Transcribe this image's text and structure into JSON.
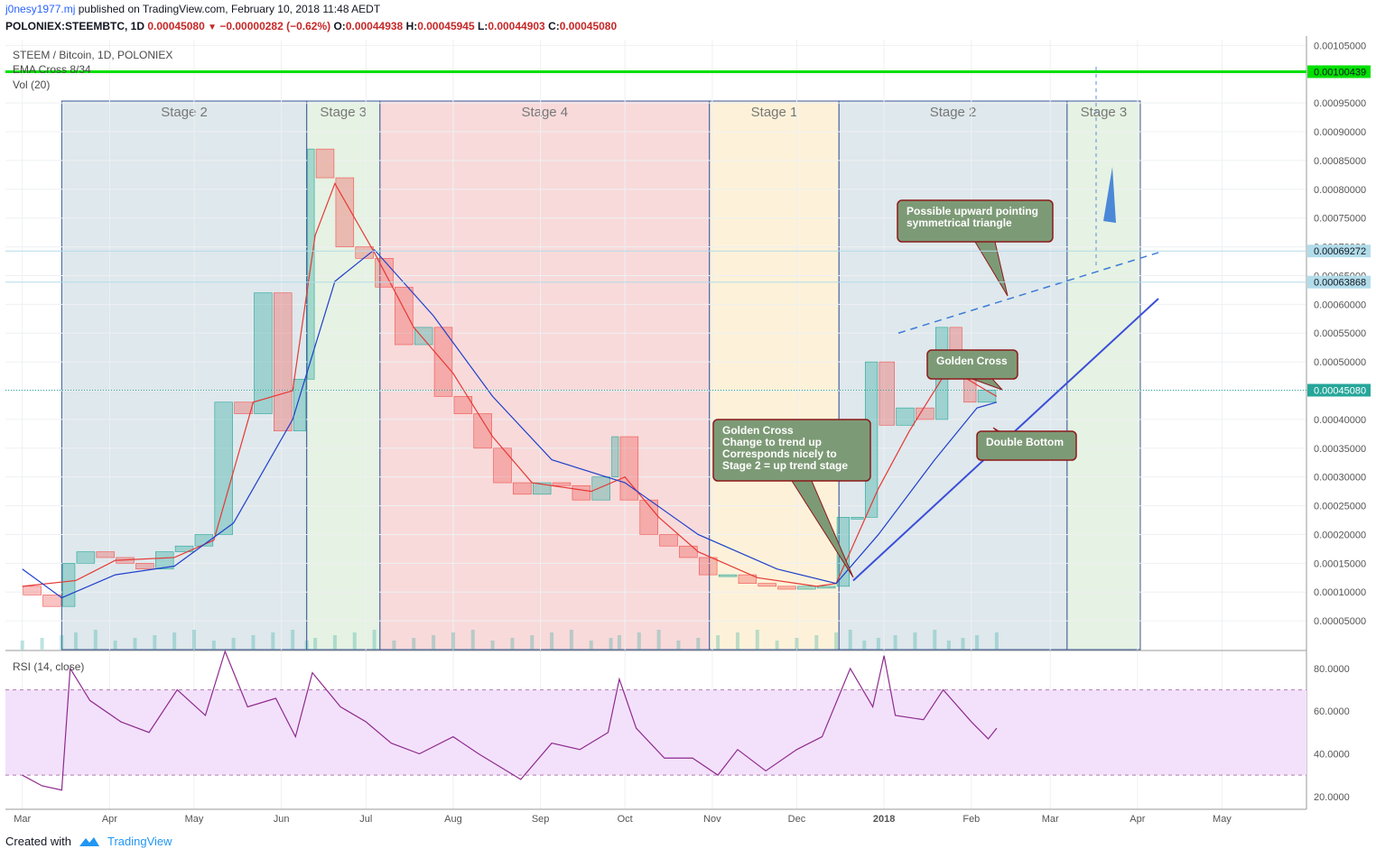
{
  "header": {
    "user": "j0nesy1977.mj",
    "published": "published on TradingView.com, February 10, 2018 11:48 AEDT",
    "symbol": "POLONIEX:STEEMBTC, 1D",
    "price": "0.00045080",
    "change": "−0.00000282 (−0.62%)",
    "o_label": "O:",
    "o": "0.00044938",
    "h_label": "H:",
    "h": "0.00045945",
    "l_label": "L:",
    "l": "0.00044903",
    "c_label": "C:",
    "c": "0.00045080"
  },
  "legend": {
    "title": "STEEM / Bitcoin, 1D, POLONIEX",
    "ema": "EMA Cross 8/34",
    "vol": "Vol (20)",
    "rsi": "RSI (14, close)"
  },
  "footer": {
    "created": "Created with",
    "brand": "TradingView"
  },
  "colors": {
    "up": "#26a69a",
    "down": "#ef5350",
    "ema_fast": "#e53935",
    "ema_slow": "#1e3fcc",
    "resistance": "#00e000",
    "rsi": "#8e2a8e",
    "rsi_band": "#f3e1fb",
    "callout": "#7d9a76"
  },
  "chart_data": [
    {
      "type": "candlestick",
      "title": "STEEM / Bitcoin, 1D, POLONIEX",
      "x_ticks": [
        "Mar",
        "Apr",
        "May",
        "Jun",
        "Jul",
        "Aug",
        "Sep",
        "Oct",
        "Nov",
        "Dec",
        "2018",
        "Feb",
        "Mar",
        "Apr",
        "May"
      ],
      "y_ticks": [
        "0.00105000",
        "0.00100000",
        "0.00095000",
        "0.00090000",
        "0.00085000",
        "0.00080000",
        "0.00075000",
        "0.00070000",
        "0.00065000",
        "0.00060000",
        "0.00055000",
        "0.00050000",
        "0.00045000",
        "0.00040000",
        "0.00035000",
        "0.00030000",
        "0.00025000",
        "0.00020000",
        "0.00015000",
        "0.00010000",
        "0.00005000"
      ],
      "ylim": [
        0.0,
        0.00106
      ],
      "price_labels": [
        {
          "value": "0.00100439",
          "color": "#00e000",
          "text_color": "#131722"
        },
        {
          "value": "0.00069272",
          "color": "#b2dcea",
          "text_color": "#131722"
        },
        {
          "value": "0.00063868",
          "color": "#b2dcea",
          "text_color": "#131722"
        },
        {
          "value": "0.00045080",
          "color": "#26a69a",
          "text_color": "#ffffff"
        }
      ],
      "close_series": [
        [
          "2017-03-01",
          0.00011
        ],
        [
          "2017-03-08",
          9.5e-05
        ],
        [
          "2017-03-15",
          7.5e-05
        ],
        [
          "2017-03-20",
          0.00015
        ],
        [
          "2017-03-27",
          0.00017
        ],
        [
          "2017-04-03",
          0.00016
        ],
        [
          "2017-04-10",
          0.00015
        ],
        [
          "2017-04-17",
          0.00014
        ],
        [
          "2017-04-24",
          0.00017
        ],
        [
          "2017-05-01",
          0.00018
        ],
        [
          "2017-05-08",
          0.0002
        ],
        [
          "2017-05-15",
          0.00043
        ],
        [
          "2017-05-22",
          0.00041
        ],
        [
          "2017-05-29",
          0.00062
        ],
        [
          "2017-06-05",
          0.00038
        ],
        [
          "2017-06-10",
          0.00047
        ],
        [
          "2017-06-13",
          0.00087
        ],
        [
          "2017-06-20",
          0.00082
        ],
        [
          "2017-06-27",
          0.0007
        ],
        [
          "2017-07-04",
          0.00068
        ],
        [
          "2017-07-11",
          0.00063
        ],
        [
          "2017-07-18",
          0.00053
        ],
        [
          "2017-07-25",
          0.00056
        ],
        [
          "2017-08-01",
          0.00044
        ],
        [
          "2017-08-08",
          0.00041
        ],
        [
          "2017-08-15",
          0.00035
        ],
        [
          "2017-08-22",
          0.00029
        ],
        [
          "2017-08-29",
          0.00027
        ],
        [
          "2017-09-05",
          0.00029
        ],
        [
          "2017-09-12",
          0.000285
        ],
        [
          "2017-09-19",
          0.00026
        ],
        [
          "2017-09-26",
          0.0003
        ],
        [
          "2017-09-29",
          0.00037
        ],
        [
          "2017-10-06",
          0.00026
        ],
        [
          "2017-10-13",
          0.0002
        ],
        [
          "2017-10-20",
          0.00018
        ],
        [
          "2017-10-27",
          0.00016
        ],
        [
          "2017-11-03",
          0.00013
        ],
        [
          "2017-11-10",
          0.00013
        ],
        [
          "2017-11-17",
          0.000115
        ],
        [
          "2017-11-24",
          0.00011
        ],
        [
          "2017-12-01",
          0.000105
        ],
        [
          "2017-12-08",
          0.00011
        ],
        [
          "2017-12-15",
          0.00011
        ],
        [
          "2017-12-20",
          0.00023
        ],
        [
          "2017-12-25",
          0.00023
        ],
        [
          "2017-12-30",
          0.0005
        ],
        [
          "2018-01-05",
          0.00039
        ],
        [
          "2018-01-12",
          0.00042
        ],
        [
          "2018-01-19",
          0.0004
        ],
        [
          "2018-01-24",
          0.00056
        ],
        [
          "2018-01-29",
          0.00048
        ],
        [
          "2018-02-03",
          0.00043
        ],
        [
          "2018-02-10",
          0.000451
        ]
      ],
      "ema_fast": [
        [
          "2017-03-01",
          0.00011
        ],
        [
          "2017-03-20",
          0.00012
        ],
        [
          "2017-04-03",
          0.000155
        ],
        [
          "2017-04-24",
          0.00016
        ],
        [
          "2017-05-08",
          0.00019
        ],
        [
          "2017-05-22",
          0.00043
        ],
        [
          "2017-06-05",
          0.00045
        ],
        [
          "2017-06-13",
          0.00072
        ],
        [
          "2017-06-20",
          0.00081
        ],
        [
          "2017-07-04",
          0.00069
        ],
        [
          "2017-07-18",
          0.00056
        ],
        [
          "2017-08-01",
          0.00048
        ],
        [
          "2017-08-15",
          0.00037
        ],
        [
          "2017-08-29",
          0.00029
        ],
        [
          "2017-09-19",
          0.000275
        ],
        [
          "2017-10-01",
          0.0003
        ],
        [
          "2017-10-13",
          0.00023
        ],
        [
          "2017-10-27",
          0.00017
        ],
        [
          "2017-11-17",
          0.000125
        ],
        [
          "2017-12-08",
          0.00011
        ],
        [
          "2017-12-15",
          0.000115
        ],
        [
          "2017-12-30",
          0.00028
        ],
        [
          "2018-01-10",
          0.00038
        ],
        [
          "2018-01-24",
          0.00049
        ],
        [
          "2018-02-03",
          0.00046
        ],
        [
          "2018-02-10",
          0.00044
        ]
      ],
      "ema_slow": [
        [
          "2017-03-01",
          0.00014
        ],
        [
          "2017-03-15",
          9e-05
        ],
        [
          "2017-04-03",
          0.00013
        ],
        [
          "2017-04-24",
          0.000145
        ],
        [
          "2017-05-15",
          0.00022
        ],
        [
          "2017-06-05",
          0.0004
        ],
        [
          "2017-06-20",
          0.00064
        ],
        [
          "2017-07-04",
          0.000695
        ],
        [
          "2017-07-25",
          0.00058
        ],
        [
          "2017-08-15",
          0.00044
        ],
        [
          "2017-09-05",
          0.00033
        ],
        [
          "2017-10-01",
          0.00029
        ],
        [
          "2017-10-27",
          0.0002
        ],
        [
          "2017-11-24",
          0.00014
        ],
        [
          "2017-12-15",
          0.000115
        ],
        [
          "2017-12-30",
          0.0002
        ],
        [
          "2018-01-19",
          0.00033
        ],
        [
          "2018-02-03",
          0.00042
        ],
        [
          "2018-02-10",
          0.00043
        ]
      ],
      "stages": [
        {
          "label": "Stage 2",
          "from": "2017-03-15",
          "to": "2017-06-10",
          "color": "#dfe8ec"
        },
        {
          "label": "Stage 3",
          "from": "2017-06-10",
          "to": "2017-07-06",
          "color": "#e6f2e3"
        },
        {
          "label": "Stage 4",
          "from": "2017-07-06",
          "to": "2017-10-31",
          "color": "#f8dada"
        },
        {
          "label": "Stage 1",
          "from": "2017-10-31",
          "to": "2017-12-16",
          "color": "#fdf2d9"
        },
        {
          "label": "Stage 2",
          "from": "2017-12-16",
          "to": "2018-03-07",
          "color": "#dfe8ec"
        },
        {
          "label": "Stage 3",
          "from": "2018-03-07",
          "to": "2018-04-02",
          "color": "#e6f2e3"
        }
      ],
      "annotations": [
        {
          "label": "Possible upward pointing symmetrical triangle"
        },
        {
          "label": "Golden Cross"
        },
        {
          "label": "Double Bottom"
        },
        {
          "label": "Golden Cross\nChange to trend up\nCorresponds nicely to\nStage 2 = up trend stage"
        }
      ]
    },
    {
      "type": "line",
      "title": "RSI (14, close)",
      "y_ticks": [
        "80.0000",
        "60.0000",
        "40.0000",
        "20.0000"
      ],
      "ylim": [
        14,
        88
      ],
      "bands": [
        30,
        70
      ],
      "series": [
        [
          "2017-03-01",
          30
        ],
        [
          "2017-03-08",
          25
        ],
        [
          "2017-03-15",
          23
        ],
        [
          "2017-03-18",
          80
        ],
        [
          "2017-03-25",
          65
        ],
        [
          "2017-04-05",
          55
        ],
        [
          "2017-04-15",
          50
        ],
        [
          "2017-04-25",
          70
        ],
        [
          "2017-05-05",
          58
        ],
        [
          "2017-05-12",
          88
        ],
        [
          "2017-05-20",
          62
        ],
        [
          "2017-05-30",
          66
        ],
        [
          "2017-06-06",
          48
        ],
        [
          "2017-06-12",
          78
        ],
        [
          "2017-06-22",
          62
        ],
        [
          "2017-07-01",
          55
        ],
        [
          "2017-07-10",
          45
        ],
        [
          "2017-07-20",
          40
        ],
        [
          "2017-08-01",
          48
        ],
        [
          "2017-08-10",
          40
        ],
        [
          "2017-08-25",
          28
        ],
        [
          "2017-09-05",
          45
        ],
        [
          "2017-09-15",
          42
        ],
        [
          "2017-09-25",
          50
        ],
        [
          "2017-09-29",
          75
        ],
        [
          "2017-10-05",
          52
        ],
        [
          "2017-10-15",
          38
        ],
        [
          "2017-10-25",
          38
        ],
        [
          "2017-11-03",
          30
        ],
        [
          "2017-11-10",
          42
        ],
        [
          "2017-11-20",
          32
        ],
        [
          "2017-12-01",
          42
        ],
        [
          "2017-12-10",
          48
        ],
        [
          "2017-12-20",
          80
        ],
        [
          "2017-12-28",
          62
        ],
        [
          "2018-01-01",
          86
        ],
        [
          "2018-01-05",
          58
        ],
        [
          "2018-01-15",
          56
        ],
        [
          "2018-01-22",
          70
        ],
        [
          "2018-02-01",
          55
        ],
        [
          "2018-02-07",
          47
        ],
        [
          "2018-02-10",
          52
        ]
      ]
    }
  ]
}
